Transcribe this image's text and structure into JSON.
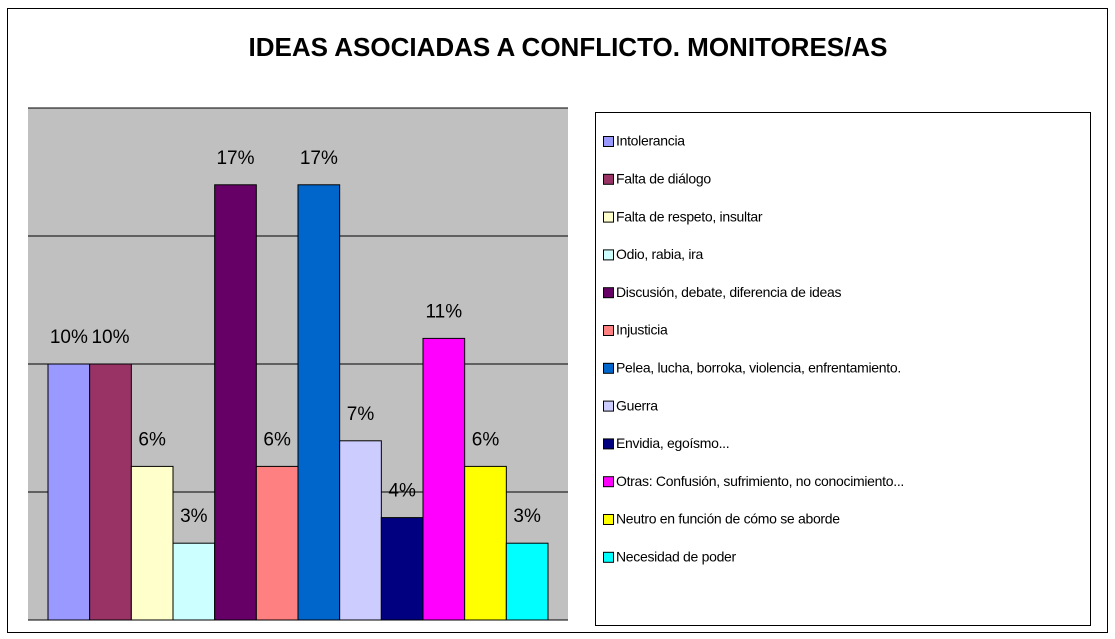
{
  "chart_data": {
    "type": "bar",
    "title": "IDEAS ASOCIADAS A CONFLICTO. MONITORES/AS",
    "categories": [
      "Intolerancia",
      "Falta de diálogo",
      "Falta de respeto, insultar",
      "Odio, rabia, ira",
      "Discusión, debate, diferencia de ideas",
      "Injusticia",
      "Pelea, lucha, borroka, violencia, enfrentamiento.",
      "Guerra",
      "Envidia, egoísmo...",
      "Otras: Confusión, sufrimiento, no conocimiento...",
      "Neutro en función de cómo se aborde",
      "Necesidad de poder"
    ],
    "values": [
      10,
      10,
      6,
      3,
      17,
      6,
      17,
      7,
      4,
      11,
      6,
      3
    ],
    "value_labels": [
      "10%",
      "10%",
      "6%",
      "3%",
      "17%",
      "6%",
      "17%",
      "7%",
      "4%",
      "11%",
      "6%",
      "3%"
    ],
    "colors": [
      "#9999ff",
      "#993366",
      "#ffffcc",
      "#ccffff",
      "#660066",
      "#ff8080",
      "#0066cc",
      "#ccccff",
      "#000080",
      "#ff00ff",
      "#ffff00",
      "#00ffff"
    ],
    "ylim": [
      0,
      20
    ],
    "yticks": [
      0,
      5,
      10,
      15,
      20
    ],
    "grid": true
  }
}
